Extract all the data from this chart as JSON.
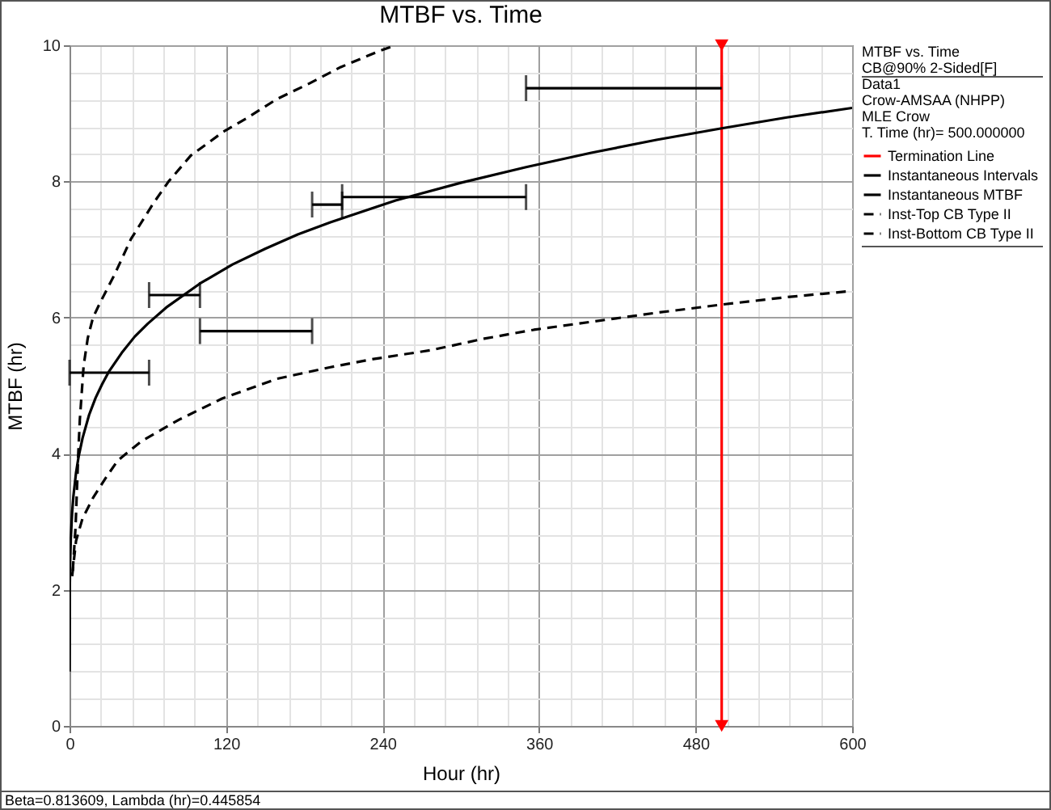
{
  "chart_data": {
    "type": "line",
    "title": "MTBF vs. Time",
    "xlabel": "Hour (hr)",
    "ylabel": "MTBF (hr)",
    "legend_title": "CB@90% 2-Sided[F]",
    "annotations": [
      "Data1",
      "Crow-AMSAA (NHPP)",
      "MLE Crow",
      "T. Time (hr)= 500.000000",
      "Beta=0.813609, Lambda (hr)=0.445854"
    ],
    "xlim": [
      0,
      600
    ],
    "xticks": [
      0,
      120,
      240,
      360,
      480,
      600
    ],
    "ylim": [
      0,
      10
    ],
    "yticks": [
      0,
      2,
      4,
      6,
      8,
      10
    ],
    "grid": true,
    "legend": "right",
    "line_style": "solid",
    "series": [
      {
        "name": "Termination Line",
        "color": "#ff0000",
        "marker": "triangle",
        "x": [
          500,
          500
        ],
        "values": [
          0,
          10
        ]
      },
      {
        "name": "Instantaneous Intervals",
        "color": "#000000",
        "x": [
          0,
          61,
          null,
          61,
          100,
          null,
          100,
          186,
          null,
          186,
          209,
          null,
          209,
          350,
          null,
          350,
          500
        ],
        "values": [
          5.19,
          5.19,
          null,
          6.33,
          6.33,
          null,
          5.8,
          5.8,
          null,
          7.66,
          7.66,
          null,
          7.77,
          7.77,
          null,
          9.37,
          9.37
        ]
      },
      {
        "name": "Instantaneous MTBF",
        "color": "#000000",
        "x": [
          0,
          0.2,
          0.5,
          1,
          2,
          3,
          5,
          7,
          10,
          15,
          20,
          25,
          30,
          40,
          50,
          60,
          75,
          100,
          125,
          150,
          175,
          200,
          250,
          300,
          350,
          400,
          450,
          500,
          550,
          600
        ],
        "values": [
          0.8,
          2.04,
          2.42,
          2.76,
          3.14,
          3.38,
          3.72,
          3.96,
          4.23,
          4.57,
          4.82,
          5.02,
          5.2,
          5.48,
          5.72,
          5.91,
          6.16,
          6.5,
          6.78,
          7.01,
          7.22,
          7.4,
          7.72,
          7.98,
          8.21,
          8.42,
          8.61,
          8.78,
          8.94,
          9.08
        ]
      },
      {
        "name": "Inst-Top CB Type II",
        "color": "#000000",
        "line_style": "dashed",
        "x": [
          2.5,
          4.6,
          6.7,
          7.9,
          10.8,
          14,
          18,
          23,
          35,
          47,
          64,
          76,
          93,
          118,
          136,
          159,
          184,
          208,
          238,
          250
        ],
        "values": [
          2.28,
          2.91,
          4.0,
          4.5,
          5.29,
          5.7,
          6.0,
          6.2,
          6.65,
          7.15,
          7.67,
          8.0,
          8.38,
          8.73,
          8.93,
          9.21,
          9.44,
          9.68,
          9.92,
          10.0
        ]
      },
      {
        "name": "Inst-Bottom CB Type II",
        "color": "#000000",
        "line_style": "dashed",
        "x": [
          2,
          5,
          10,
          18,
          28,
          37,
          55,
          84,
          117,
          159,
          200,
          233,
          277,
          318,
          356,
          401,
          450,
          500,
          550,
          600
        ],
        "values": [
          2.2,
          2.72,
          3.05,
          3.35,
          3.65,
          3.9,
          4.18,
          4.5,
          4.81,
          5.1,
          5.27,
          5.39,
          5.52,
          5.69,
          5.82,
          5.94,
          6.07,
          6.19,
          6.3,
          6.39
        ]
      }
    ]
  }
}
